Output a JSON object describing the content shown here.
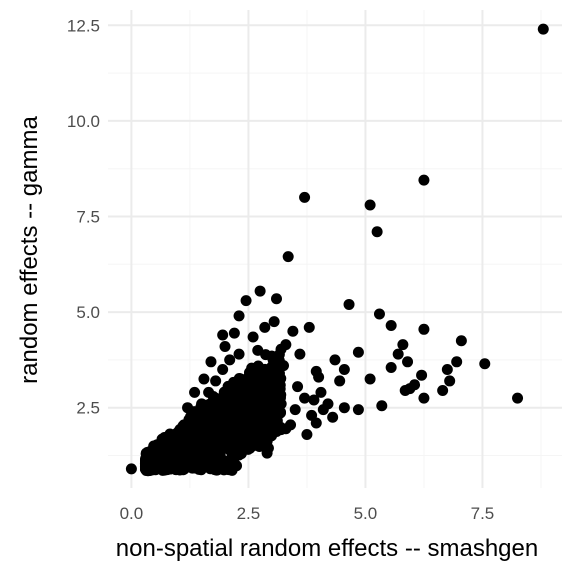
{
  "chart_data": {
    "type": "scatter",
    "title": "",
    "xlabel": "non-spatial random effects -- smashgen",
    "ylabel": "random effects -- gamma",
    "xlim": [
      -0.5,
      9.2
    ],
    "ylim": [
      0.4,
      12.9
    ],
    "x_ticks": [
      0.0,
      2.5,
      5.0,
      7.5
    ],
    "x_tick_labels": [
      "0.0",
      "2.5",
      "5.0",
      "7.5"
    ],
    "y_ticks": [
      2.5,
      5.0,
      7.5,
      10.0,
      12.5
    ],
    "y_tick_labels": [
      "2.5",
      "5.0",
      "7.5",
      "10.0",
      "12.5"
    ],
    "grid": true,
    "point_color": "#000000",
    "grid_major_color": "#ebebeb",
    "grid_minor_color": "#f5f5f5",
    "points": [
      [
        8.8,
        12.4
      ],
      [
        6.25,
        8.45
      ],
      [
        3.7,
        8.0
      ],
      [
        5.1,
        7.8
      ],
      [
        5.25,
        7.1
      ],
      [
        3.35,
        6.45
      ],
      [
        2.75,
        5.55
      ],
      [
        2.45,
        5.3
      ],
      [
        3.1,
        5.35
      ],
      [
        4.65,
        5.2
      ],
      [
        5.3,
        4.95
      ],
      [
        5.55,
        4.65
      ],
      [
        6.25,
        4.55
      ],
      [
        7.05,
        4.25
      ],
      [
        5.8,
        4.15
      ],
      [
        5.7,
        3.9
      ],
      [
        4.85,
        3.95
      ],
      [
        5.9,
        3.7
      ],
      [
        7.55,
        3.65
      ],
      [
        6.95,
        3.7
      ],
      [
        6.75,
        3.5
      ],
      [
        5.55,
        3.55
      ],
      [
        4.55,
        3.5
      ],
      [
        5.1,
        3.25
      ],
      [
        6.2,
        3.35
      ],
      [
        6.05,
        3.1
      ],
      [
        6.8,
        3.2
      ],
      [
        5.95,
        3.0
      ],
      [
        6.25,
        2.75
      ],
      [
        5.85,
        2.95
      ],
      [
        6.65,
        2.95
      ],
      [
        8.25,
        2.75
      ],
      [
        5.35,
        2.55
      ],
      [
        4.85,
        2.45
      ],
      [
        4.55,
        2.5
      ],
      [
        4.3,
        2.25
      ],
      [
        3.85,
        2.3
      ],
      [
        3.75,
        1.8
      ],
      [
        3.4,
        2.05
      ],
      [
        3.3,
        1.95
      ],
      [
        2.95,
        2.35
      ],
      [
        2.35,
        1.3
      ],
      [
        1.8,
        1.15
      ],
      [
        0.0,
        0.9
      ],
      [
        4.05,
        2.9
      ],
      [
        3.55,
        3.05
      ],
      [
        3.95,
        3.45
      ],
      [
        3.25,
        3.6
      ],
      [
        3.6,
        3.9
      ],
      [
        3.8,
        4.6
      ],
      [
        3.45,
        4.5
      ],
      [
        3.05,
        4.75
      ],
      [
        2.85,
        4.6
      ],
      [
        2.6,
        4.35
      ],
      [
        2.2,
        4.45
      ],
      [
        1.95,
        4.4
      ],
      [
        2.3,
        4.9
      ],
      [
        4.0,
        3.3
      ],
      [
        4.35,
        3.75
      ],
      [
        3.9,
        2.7
      ],
      [
        4.2,
        2.6
      ],
      [
        4.45,
        3.2
      ],
      [
        2.55,
        1.65
      ],
      [
        2.75,
        2.0
      ],
      [
        1.95,
        1.55
      ],
      [
        0.35,
        0.9
      ],
      [
        0.55,
        0.95
      ],
      [
        0.75,
        0.9
      ],
      [
        0.95,
        0.88
      ],
      [
        1.1,
        0.9
      ],
      [
        1.25,
        1.05
      ],
      [
        1.4,
        1.3
      ],
      [
        0.5,
        1.0
      ],
      [
        0.65,
        1.2
      ],
      [
        0.85,
        1.4
      ],
      [
        1.0,
        1.75
      ],
      [
        1.15,
        2.0
      ],
      [
        1.3,
        2.35
      ],
      [
        1.5,
        2.6
      ],
      [
        1.65,
        2.9
      ],
      [
        1.8,
        3.2
      ],
      [
        1.95,
        3.5
      ],
      [
        2.1,
        3.75
      ],
      [
        2.3,
        3.9
      ],
      [
        1.7,
        3.7
      ],
      [
        1.2,
        2.5
      ],
      [
        1.6,
        1.4
      ],
      [
        2.05,
        1.85
      ],
      [
        2.4,
        2.1
      ],
      [
        2.65,
        2.5
      ],
      [
        2.9,
        2.8
      ],
      [
        3.15,
        3.1
      ],
      [
        2.5,
        3.3
      ],
      [
        2.15,
        2.85
      ],
      [
        3.0,
        3.85
      ],
      [
        0.9,
        1.7
      ],
      [
        0.7,
        1.35
      ],
      [
        1.05,
        1.25
      ],
      [
        1.45,
        1.7
      ],
      [
        1.85,
        2.25
      ],
      [
        2.25,
        2.6
      ],
      [
        2.6,
        3.05
      ],
      [
        2.8,
        3.35
      ],
      [
        3.2,
        2.6
      ],
      [
        3.5,
        2.45
      ],
      [
        3.7,
        2.75
      ],
      [
        3.95,
        2.1
      ],
      [
        4.1,
        2.45
      ],
      [
        1.35,
        2.9
      ],
      [
        1.55,
        3.25
      ],
      [
        2.0,
        4.1
      ],
      [
        2.7,
        4.0
      ],
      [
        3.3,
        4.15
      ],
      [
        0.45,
        0.88
      ],
      [
        0.6,
        0.92
      ]
    ]
  }
}
